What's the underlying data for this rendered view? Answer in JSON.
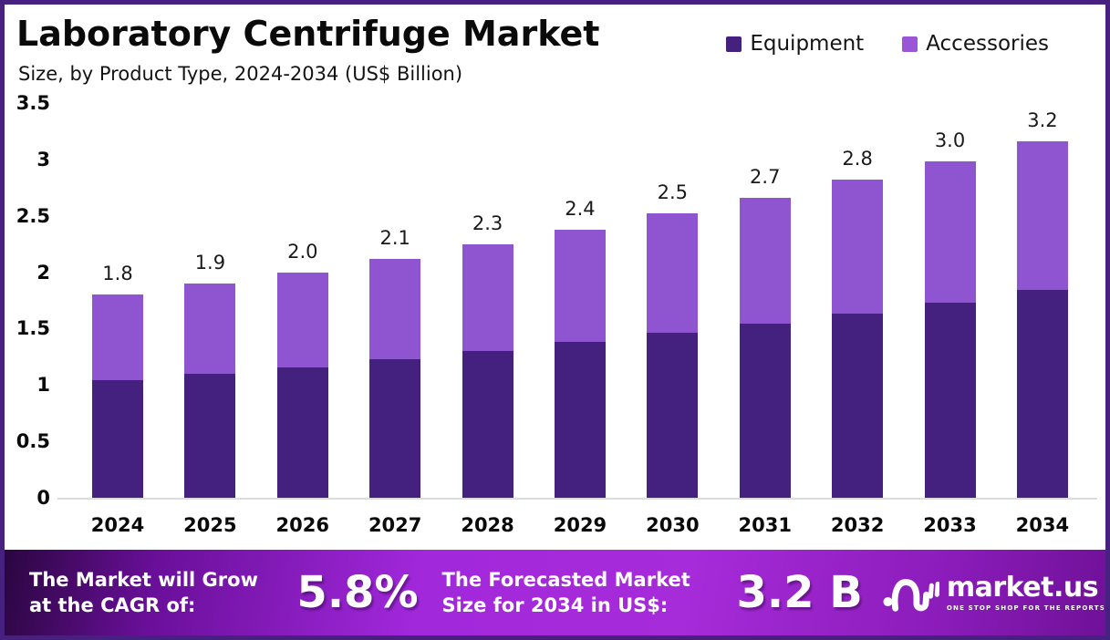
{
  "header": {
    "title": "Laboratory Centrifuge Market",
    "subtitle": "Size, by Product Type, 2024-2034 (US$ Billion)"
  },
  "legend": [
    {
      "label": "Equipment",
      "color": "#45217f"
    },
    {
      "label": "Accessories",
      "color": "#9a56d6"
    }
  ],
  "chart_data": {
    "type": "bar",
    "stacked": true,
    "title": "Laboratory Centrifuge Market Size, by Product Type, 2024-2034 (US$ Billion)",
    "categories": [
      "2024",
      "2025",
      "2026",
      "2027",
      "2028",
      "2029",
      "2030",
      "2031",
      "2032",
      "2033",
      "2034"
    ],
    "series": [
      {
        "name": "Equipment",
        "color": "#45217f",
        "values": [
          1.04,
          1.1,
          1.16,
          1.23,
          1.3,
          1.38,
          1.46,
          1.54,
          1.63,
          1.73,
          1.84
        ]
      },
      {
        "name": "Accessories",
        "color": "#8f55d0",
        "values": [
          0.76,
          0.8,
          0.84,
          0.89,
          0.95,
          1.0,
          1.06,
          1.12,
          1.19,
          1.25,
          1.32
        ]
      }
    ],
    "total_labels": [
      "1.8",
      "1.9",
      "2.0",
      "2.1",
      "2.3",
      "2.4",
      "2.5",
      "2.7",
      "2.8",
      "3.0",
      "3.2"
    ],
    "xlabel": "",
    "ylabel": "US$ Billion",
    "ylim": [
      0,
      3.5
    ],
    "yticks": [
      "0",
      "0.5",
      "1",
      "1.5",
      "2",
      "2.5",
      "3",
      "3.5"
    ],
    "grid": false,
    "legend_position": "top-right"
  },
  "footer": {
    "cagr_label_line1": "The Market will Grow",
    "cagr_label_line2": "at the CAGR of:",
    "cagr_value": "5.8%",
    "forecast_label_line1": "The Forecasted Market",
    "forecast_label_line2": "Size for 2034 in US$:",
    "forecast_value": "3.2 B",
    "brand": {
      "name": "market.us",
      "tagline": "ONE STOP SHOP FOR THE REPORTS"
    }
  },
  "colors": {
    "frame_border": "#46217f",
    "equipment": "#45217f",
    "accessories": "#8f55d0",
    "axis_line": "#dcdcdc",
    "footer_gradient_dark": "#2a0640",
    "footer_gradient_bright": "#a62bd9",
    "text": "#0a0a0a"
  }
}
